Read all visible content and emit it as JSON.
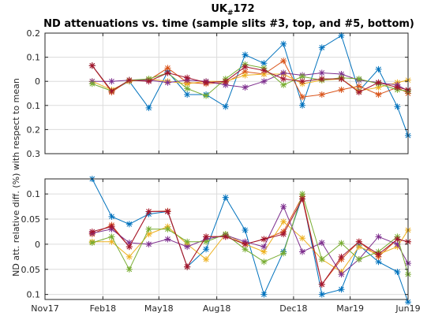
{
  "figure": {
    "title_main": "UK",
    "title_sub": "#",
    "title_num": "172",
    "title_line2": "ND attenuations vs. time (sample slits #3, top, and #5, bottom)",
    "ylabel": "ND att. relative diff. (%) with respect to mean"
  },
  "colors": {
    "series": [
      "#0072BD",
      "#D95319",
      "#EDB120",
      "#7E2F8E",
      "#77AC30",
      "#A2142F"
    ],
    "grid": "#dcdcdc",
    "axis": "#262626"
  },
  "chart_data": [
    {
      "type": "line",
      "panel": "top",
      "marker": "asterisk",
      "ylim": [
        -0.3,
        0.2
      ],
      "yticks": [
        0.2,
        0.1,
        0,
        -0.1,
        -0.2,
        -0.3
      ],
      "ytick_labels": [
        "0.2",
        "0.1",
        "0",
        "0.1",
        "0.2",
        "0.3"
      ],
      "xlim": [
        "2017-11-01",
        "2019-06-01"
      ],
      "xticks": [
        "2017-11-01",
        "2018-02-01",
        "2018-05-01",
        "2018-08-01",
        "2018-12-01",
        "2019-03-01",
        "2019-06-01"
      ],
      "xtick_labels": [],
      "grid": true,
      "series": [
        {
          "x": [
            "2018-01-15",
            "2018-02-15",
            "2018-03-15",
            "2018-04-15",
            "2018-05-15",
            "2018-06-15",
            "2018-07-15",
            "2018-08-15",
            "2018-09-15",
            "2018-10-15",
            "2018-11-15",
            "2018-12-15",
            "2019-01-15",
            "2019-02-15",
            "2019-03-15",
            "2019-04-15",
            "2019-05-15",
            "2019-06-01"
          ],
          "values": [
            0.065,
            -0.04,
            0.0,
            -0.11,
            0.04,
            -0.055,
            -0.055,
            -0.105,
            0.11,
            0.075,
            0.155,
            -0.1,
            0.14,
            0.19,
            -0.04,
            0.05,
            -0.105,
            -0.225
          ]
        },
        {
          "x": [
            "2018-01-15",
            "2018-02-15",
            "2018-03-15",
            "2018-04-15",
            "2018-05-15",
            "2018-06-15",
            "2018-07-15",
            "2018-08-15",
            "2018-09-15",
            "2018-10-15",
            "2018-11-15",
            "2018-12-15",
            "2019-01-15",
            "2019-02-15",
            "2019-03-15",
            "2019-04-15",
            "2019-05-15",
            "2019-06-01"
          ],
          "values": [
            0.065,
            -0.045,
            0.005,
            0.005,
            0.055,
            -0.005,
            -0.01,
            -0.005,
            0.04,
            0.03,
            0.085,
            -0.065,
            -0.055,
            -0.035,
            -0.02,
            -0.055,
            -0.025,
            -0.05
          ]
        },
        {
          "x": [
            "2018-01-15",
            "2018-02-15",
            "2018-03-15",
            "2018-04-15",
            "2018-05-15",
            "2018-06-15",
            "2018-07-15",
            "2018-08-15",
            "2018-09-15",
            "2018-10-15",
            "2018-11-15",
            "2018-12-15",
            "2019-01-15",
            "2019-02-15",
            "2019-03-15",
            "2019-04-15",
            "2019-05-15",
            "2019-06-01"
          ],
          "values": [
            0.0,
            -0.035,
            0.0,
            0.01,
            0.0,
            -0.01,
            0.0,
            0.0,
            0.025,
            0.03,
            0.03,
            -0.01,
            0.005,
            0.01,
            -0.04,
            -0.025,
            -0.005,
            0.005
          ]
        },
        {
          "x": [
            "2018-01-15",
            "2018-02-15",
            "2018-03-15",
            "2018-04-15",
            "2018-05-15",
            "2018-06-15",
            "2018-07-15",
            "2018-08-15",
            "2018-09-15",
            "2018-10-15",
            "2018-11-15",
            "2018-12-15",
            "2019-01-15",
            "2019-02-15",
            "2019-03-15",
            "2019-04-15",
            "2019-05-15",
            "2019-06-01"
          ],
          "values": [
            0.0,
            0.0,
            0.005,
            0.005,
            -0.005,
            0.005,
            0.0,
            -0.015,
            -0.025,
            0.0,
            0.035,
            0.025,
            0.035,
            0.03,
            0.005,
            -0.005,
            -0.015,
            -0.04
          ]
        },
        {
          "x": [
            "2018-01-15",
            "2018-02-15",
            "2018-03-15",
            "2018-04-15",
            "2018-05-15",
            "2018-06-15",
            "2018-07-15",
            "2018-08-15",
            "2018-09-15",
            "2018-10-15",
            "2018-11-15",
            "2018-12-15",
            "2019-01-15",
            "2019-02-15",
            "2019-03-15",
            "2019-04-15",
            "2019-05-15",
            "2019-06-01"
          ],
          "values": [
            -0.01,
            -0.04,
            0.005,
            0.01,
            0.035,
            -0.03,
            -0.06,
            0.01,
            0.07,
            0.055,
            -0.015,
            0.02,
            0.005,
            0.015,
            0.01,
            -0.01,
            -0.035,
            -0.04
          ]
        },
        {
          "x": [
            "2018-01-15",
            "2018-02-15",
            "2018-03-15",
            "2018-04-15",
            "2018-05-15",
            "2018-06-15",
            "2018-07-15",
            "2018-08-15",
            "2018-09-15",
            "2018-10-15",
            "2018-11-15",
            "2018-12-15",
            "2019-01-15",
            "2019-02-15",
            "2019-03-15",
            "2019-04-15",
            "2019-05-15",
            "2019-06-01"
          ],
          "values": [
            0.065,
            -0.04,
            0.005,
            0.0,
            0.035,
            0.015,
            -0.005,
            0.0,
            0.06,
            0.045,
            0.01,
            0.0,
            0.01,
            0.01,
            -0.045,
            -0.005,
            -0.025,
            -0.035
          ]
        }
      ]
    },
    {
      "type": "line",
      "panel": "bottom",
      "marker": "asterisk",
      "ylim": [
        -0.11,
        0.13
      ],
      "yticks": [
        0.1,
        0.05,
        0,
        -0.05,
        -0.1
      ],
      "ytick_labels": [
        "0.1",
        "0.05",
        "0",
        "0.05",
        "0.1"
      ],
      "xlim": [
        "2017-11-01",
        "2019-06-01"
      ],
      "xticks": [
        "2017-11-01",
        "2018-02-01",
        "2018-05-01",
        "2018-08-01",
        "2018-12-01",
        "2019-03-01",
        "2019-06-01"
      ],
      "xtick_labels": [
        "Nov17",
        "Feb18",
        "May18",
        "Aug18",
        "Dec18",
        "Mar19",
        "Jun19"
      ],
      "grid": true,
      "series": [
        {
          "x": [
            "2018-01-15",
            "2018-02-15",
            "2018-03-15",
            "2018-04-15",
            "2018-05-15",
            "2018-06-15",
            "2018-07-15",
            "2018-08-15",
            "2018-09-15",
            "2018-10-15",
            "2018-11-15",
            "2018-12-15",
            "2019-01-15",
            "2019-02-15",
            "2019-03-15",
            "2019-04-15",
            "2019-05-15",
            "2019-06-01"
          ],
          "values": [
            0.13,
            0.055,
            0.04,
            0.06,
            0.065,
            -0.045,
            -0.01,
            0.093,
            0.028,
            -0.1,
            -0.015,
            0.095,
            -0.1,
            -0.09,
            -0.002,
            -0.035,
            -0.055,
            -0.115
          ]
        },
        {
          "x": [
            "2018-01-15",
            "2018-02-15",
            "2018-03-15",
            "2018-04-15",
            "2018-05-15",
            "2018-06-15",
            "2018-07-15",
            "2018-08-15",
            "2018-09-15",
            "2018-10-15",
            "2018-11-15",
            "2018-12-15",
            "2019-01-15",
            "2019-02-15",
            "2019-03-15",
            "2019-04-15",
            "2019-05-15",
            "2019-06-01"
          ],
          "values": [
            0.02,
            0.038,
            -0.005,
            0.065,
            0.066,
            -0.045,
            0.015,
            0.015,
            0.0,
            0.01,
            0.025,
            0.095,
            -0.08,
            -0.03,
            0.005,
            -0.025,
            0.01,
            0.005
          ]
        },
        {
          "x": [
            "2018-01-15",
            "2018-02-15",
            "2018-03-15",
            "2018-04-15",
            "2018-05-15",
            "2018-06-15",
            "2018-07-15",
            "2018-08-15",
            "2018-09-15",
            "2018-10-15",
            "2018-11-15",
            "2018-12-15",
            "2019-01-15",
            "2019-02-15",
            "2019-03-15",
            "2019-04-15",
            "2019-05-15",
            "2019-06-01"
          ],
          "values": [
            0.005,
            0.005,
            -0.025,
            0.02,
            0.035,
            0.0,
            -0.03,
            0.02,
            0.0,
            -0.015,
            0.045,
            0.012,
            -0.03,
            -0.055,
            -0.005,
            -0.02,
            -0.005,
            0.028
          ]
        },
        {
          "x": [
            "2018-01-15",
            "2018-02-15",
            "2018-03-15",
            "2018-04-15",
            "2018-05-15",
            "2018-06-15",
            "2018-07-15",
            "2018-08-15",
            "2018-09-15",
            "2018-10-15",
            "2018-11-15",
            "2018-12-15",
            "2019-01-15",
            "2019-02-15",
            "2019-03-15",
            "2019-04-15",
            "2019-05-15",
            "2019-06-01"
          ],
          "values": [
            0.022,
            0.03,
            0.003,
            0.0,
            0.01,
            -0.005,
            0.01,
            0.018,
            0.005,
            -0.005,
            0.075,
            -0.015,
            0.003,
            -0.06,
            -0.03,
            0.015,
            0.0,
            -0.038
          ]
        },
        {
          "x": [
            "2018-01-15",
            "2018-02-15",
            "2018-03-15",
            "2018-04-15",
            "2018-05-15",
            "2018-06-15",
            "2018-07-15",
            "2018-08-15",
            "2018-09-15",
            "2018-10-15",
            "2018-11-15",
            "2018-12-15",
            "2019-01-15",
            "2019-02-15",
            "2019-03-15",
            "2019-04-15",
            "2019-05-15",
            "2019-06-01"
          ],
          "values": [
            0.003,
            0.015,
            -0.05,
            0.03,
            0.03,
            0.005,
            0.005,
            0.02,
            -0.01,
            -0.035,
            -0.018,
            0.1,
            -0.03,
            0.002,
            -0.03,
            -0.015,
            0.015,
            -0.06
          ]
        },
        {
          "x": [
            "2018-01-15",
            "2018-02-15",
            "2018-03-15",
            "2018-04-15",
            "2018-05-15",
            "2018-06-15",
            "2018-07-15",
            "2018-08-15",
            "2018-09-15",
            "2018-10-15",
            "2018-11-15",
            "2018-12-15",
            "2019-01-15",
            "2019-02-15",
            "2019-03-15",
            "2019-04-15",
            "2019-05-15",
            "2019-06-01"
          ],
          "values": [
            0.025,
            0.035,
            -0.005,
            0.065,
            0.065,
            -0.045,
            0.015,
            0.015,
            0.0,
            0.01,
            0.02,
            0.09,
            -0.08,
            -0.025,
            0.005,
            -0.02,
            0.01,
            0.005
          ]
        }
      ]
    }
  ]
}
